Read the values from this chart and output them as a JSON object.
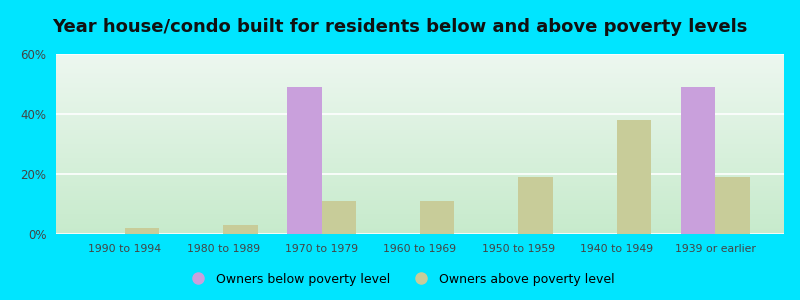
{
  "title": "Year house/condo built for residents below and above poverty levels",
  "categories": [
    "1990 to 1994",
    "1980 to 1989",
    "1970 to 1979",
    "1960 to 1969",
    "1950 to 1959",
    "1940 to 1949",
    "1939 or earlier"
  ],
  "below_poverty": [
    0,
    0,
    49,
    0,
    0,
    0,
    49
  ],
  "above_poverty": [
    2,
    3,
    11,
    11,
    19,
    38,
    19
  ],
  "below_color": "#c9a0dc",
  "above_color": "#c8cc99",
  "background_outer": "#00e5ff",
  "background_inner_topleft": "#e8f5f0",
  "background_inner_bottomleft": "#c8eacc",
  "background_inner_topright": "#f0f8f5",
  "background_inner_bottomright": "#e0f0dc",
  "ylim": [
    0,
    60
  ],
  "yticks": [
    0,
    20,
    40,
    60
  ],
  "ytick_labels": [
    "0%",
    "20%",
    "40%",
    "60%"
  ],
  "legend_below": "Owners below poverty level",
  "legend_above": "Owners above poverty level",
  "title_fontsize": 13,
  "bar_width": 0.35
}
